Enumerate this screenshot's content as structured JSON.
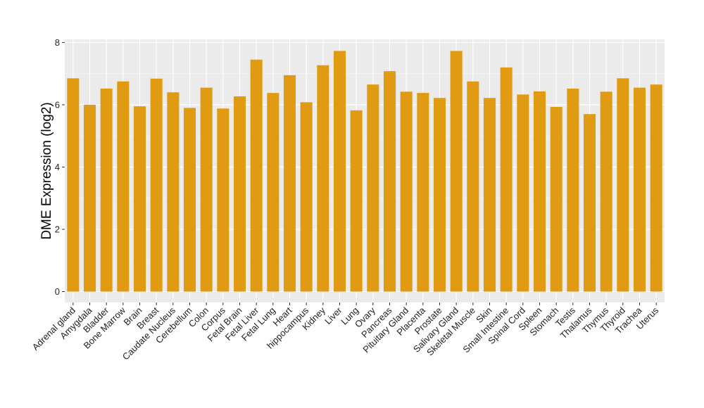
{
  "chart_data": {
    "type": "bar",
    "title": "",
    "xlabel": "",
    "ylabel": "DME Expression (log2)",
    "ylim": [
      -0.35,
      8.1
    ],
    "yticks": [
      0,
      2,
      4,
      6,
      8
    ],
    "grid": true,
    "legend": "none",
    "colors": {
      "bar": "#E09B12",
      "panel": "#EBEBEB"
    },
    "categories": [
      "Adrenal gland",
      "Amygdala",
      "Bladder",
      "Bone Marrow",
      "Brain",
      "Breast",
      "Caudate Nucleus",
      "Cerebellum",
      "Colon",
      "Corpus",
      "Fetal Brain",
      "Fetal Liver",
      "Fetal Lung",
      "Heart",
      "hippocampus",
      "Kidney",
      "Liver",
      "Lung",
      "Ovary",
      "Pancreas",
      "Pituitary Gland",
      "Placenta",
      "Prostate",
      "Salivary Gland",
      "Skeletal Muscle",
      "Skin",
      "Small Intestine",
      "Spinal Cord",
      "Spleen",
      "Stomach",
      "Testis",
      "Thalamus",
      "Thymus",
      "Thyroid",
      "Trachea",
      "Uterus"
    ],
    "values": [
      6.85,
      6.0,
      6.52,
      6.75,
      5.95,
      6.84,
      6.4,
      5.9,
      6.55,
      5.88,
      6.27,
      7.45,
      6.38,
      6.95,
      6.08,
      7.27,
      7.73,
      5.82,
      6.65,
      7.08,
      6.42,
      6.38,
      6.22,
      7.73,
      6.75,
      6.22,
      7.2,
      6.33,
      6.43,
      5.93,
      6.52,
      5.7,
      6.42,
      6.85,
      6.55,
      6.65
    ]
  }
}
